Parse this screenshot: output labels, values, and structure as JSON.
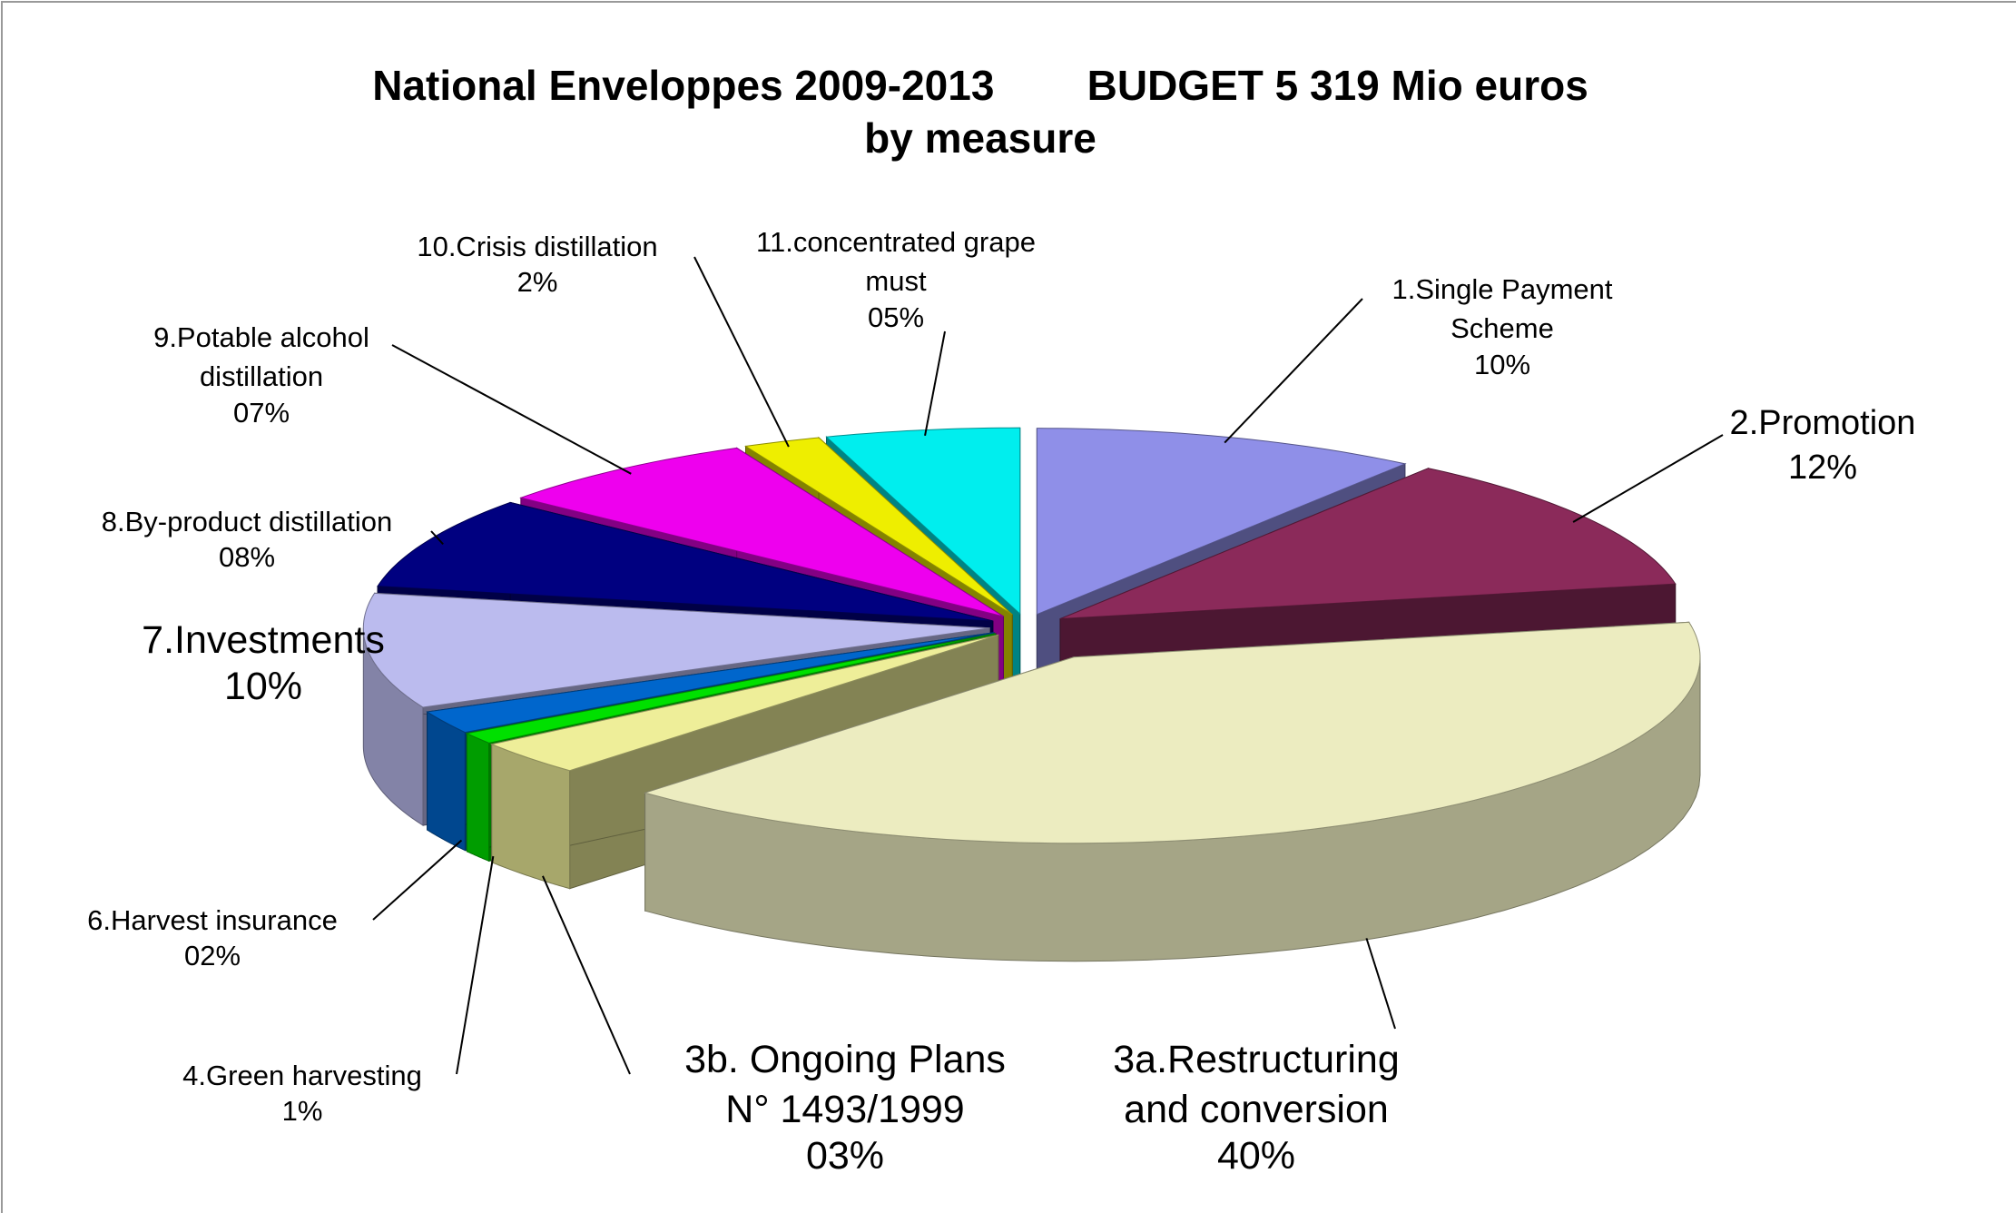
{
  "chart_data": {
    "type": "pie3d",
    "title": "National Enveloppes 2009-2013        BUDGET 5 319 Mio euros\nby measure",
    "categories": [
      "1.Single Payment\nScheme",
      "2.Promotion",
      "3a.Restructuring\nand conversion",
      "3b. Ongoing Plans\nN° 1493/1999",
      "4.Green harvesting",
      "6.Harvest insurance",
      "7.Investments",
      "8.By-product distillation",
      "9.Potable alcohol\ndistillation",
      "10.Crisis distillation",
      "11.concentrated grape\nmust"
    ],
    "values": [
      10,
      12,
      40,
      3,
      1,
      2,
      10,
      8,
      7,
      2,
      5
    ],
    "value_labels": [
      "10%",
      "12%",
      "40%",
      "03%",
      "1%",
      "02%",
      "10%",
      "08%",
      "07%",
      "2%",
      "05%"
    ],
    "colors": [
      "#8f8fe8",
      "#8b2a5a",
      "#ececc0",
      "#eeee99",
      "#00e000",
      "#0066cc",
      "#bbbbee",
      "#000080",
      "#ee00ee",
      "#eeee00",
      "#00eeee"
    ]
  }
}
